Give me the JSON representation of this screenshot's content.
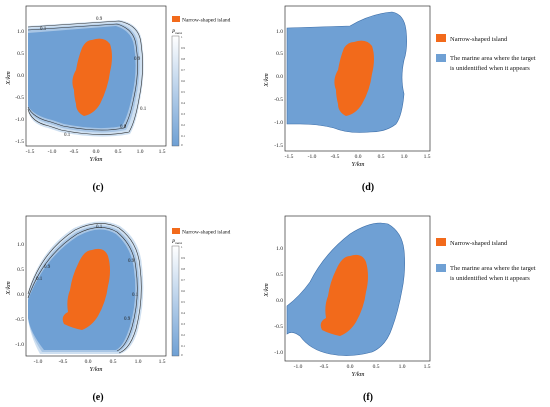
{
  "colors": {
    "island": "#f26a1b",
    "marine": "#6fa0d4",
    "marine_edge": "#3d6ea8",
    "contour": "#2f2f2f",
    "frame": "#333333"
  },
  "legend_binary": {
    "island": "Narrow-shaped island",
    "marine_line1": "The marine area where the target",
    "marine_line2": "is unidentified when it appears"
  },
  "legend_contour": {
    "island": "Narrow-shaped island",
    "colorbar_title": "P",
    "colorbar_sub": "mass",
    "colorbar_ticks": [
      "1",
      "0.9",
      "0.8",
      "0.7",
      "0.6",
      "0.5",
      "0.4",
      "0.3",
      "0.2",
      "0.1",
      "0"
    ]
  },
  "contour_labels": [
    "0.9",
    "0.1"
  ],
  "panels": [
    {
      "id": "c",
      "caption": "(c)",
      "kind": "contour",
      "xlabel": "Y/km",
      "ylabel": "X/km",
      "xticks": [
        "-1.5",
        "-1.0",
        "-0.5",
        "0.0",
        "0.5",
        "1.0",
        "1.5"
      ],
      "yticks": [
        "1.0",
        "0.5",
        "0.0",
        "-0.5",
        "-1.0",
        "-1.5"
      ]
    },
    {
      "id": "d",
      "caption": "(d)",
      "kind": "binary",
      "xlabel": "Y/km",
      "ylabel": "X/km",
      "xticks": [
        "-1.5",
        "-1.0",
        "-0.5",
        "0.0",
        "0.5",
        "1.0",
        "1.5"
      ],
      "yticks": [
        "1.0",
        "0.5",
        "0.0",
        "-0.5",
        "-1.0",
        "-1.5"
      ]
    },
    {
      "id": "e",
      "caption": "(e)",
      "kind": "contour",
      "xlabel": "Y/km",
      "ylabel": "X/km",
      "xticks": [
        "-1.0",
        "-0.5",
        "0.0",
        "0.5",
        "1.0",
        "1.5"
      ],
      "yticks": [
        "1.0",
        "0.5",
        "0.0",
        "-0.5",
        "-1.0"
      ]
    },
    {
      "id": "f",
      "caption": "(f)",
      "kind": "binary",
      "xlabel": "Y/km",
      "ylabel": "X/km",
      "xticks": [
        "-1.0",
        "-0.5",
        "0.0",
        "0.5",
        "1.0",
        "1.5"
      ],
      "yticks": [
        "1.0",
        "0.5",
        "0.0",
        "-0.5",
        "-1.0"
      ]
    }
  ]
}
